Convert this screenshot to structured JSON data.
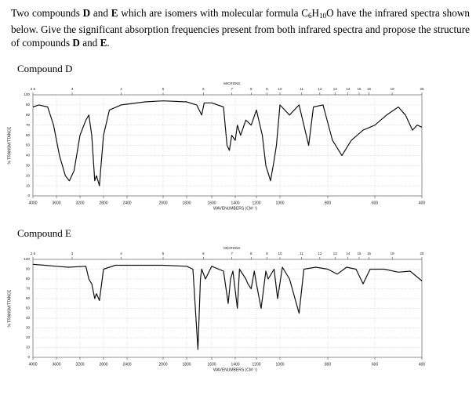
{
  "question": [
    "Two compounds ",
    "D",
    " and ",
    "E",
    " which are isomers with molecular formula C",
    "6",
    "H",
    "10",
    "O have the infrared spectra shown below. Give the significant absorption frequencies present from both infrared spectra and propose the structure of compounds ",
    "D",
    " and ",
    "E",
    "."
  ],
  "chart_data": [
    {
      "type": "line",
      "title": "Compound D",
      "xlabel": "WAVENUMBERS (CM⁻¹)",
      "ylabel": "% TRANSMITTANCE",
      "x2label": "MICRONS",
      "x": [
        4000,
        3900,
        3750,
        3650,
        3550,
        3450,
        3380,
        3300,
        3200,
        3100,
        3050,
        3000,
        2950,
        2920,
        2870,
        2850,
        2800,
        2700,
        2500,
        2200,
        2000,
        1800,
        1720,
        1680,
        1660,
        1600,
        1500,
        1470,
        1450,
        1430,
        1400,
        1380,
        1350,
        1300,
        1250,
        1200,
        1150,
        1120,
        1080,
        1050,
        1030,
        1000,
        960,
        920,
        880,
        860,
        820,
        780,
        740,
        700,
        650,
        600,
        550,
        500,
        470,
        440,
        420,
        400
      ],
      "series": [
        {
          "color": "#111111",
          "values": [
            88,
            90,
            88,
            70,
            40,
            20,
            15,
            25,
            60,
            75,
            80,
            60,
            15,
            20,
            10,
            25,
            60,
            85,
            90,
            93,
            94,
            93,
            90,
            80,
            92,
            92,
            88,
            50,
            45,
            60,
            55,
            70,
            60,
            75,
            70,
            85,
            60,
            30,
            15,
            35,
            50,
            90,
            80,
            90,
            50,
            88,
            90,
            55,
            40,
            55,
            65,
            70,
            80,
            88,
            80,
            65,
            70,
            68
          ]
        }
      ],
      "xlim": [
        4000,
        400
      ],
      "xticks": [
        4000,
        3600,
        3200,
        2800,
        2400,
        2000,
        1800,
        1600,
        1400,
        1200,
        1000,
        800,
        600,
        400
      ],
      "x2ticks": [
        2.5,
        3,
        4,
        5,
        6,
        7,
        8,
        9,
        10,
        11,
        12,
        13,
        14,
        15,
        16,
        19,
        25
      ],
      "ylim": [
        0,
        100
      ],
      "yticks": [
        0,
        10,
        20,
        30,
        40,
        50,
        60,
        70,
        80,
        90,
        100
      ],
      "grid": true
    },
    {
      "type": "line",
      "title": "Compound E",
      "xlabel": "WAVENUMBERS (CM⁻¹)",
      "ylabel": "% TRANSMITTANCE",
      "x2label": "MICRONS",
      "x": [
        4000,
        3800,
        3600,
        3400,
        3100,
        3050,
        3000,
        2950,
        2920,
        2870,
        2800,
        2600,
        2000,
        1800,
        1750,
        1710,
        1690,
        1680,
        1650,
        1600,
        1500,
        1460,
        1440,
        1420,
        1380,
        1360,
        1300,
        1280,
        1250,
        1220,
        1200,
        1160,
        1120,
        1100,
        1050,
        1020,
        990,
        960,
        920,
        900,
        850,
        800,
        760,
        720,
        680,
        650,
        620,
        560,
        500,
        450,
        400
      ],
      "series": [
        {
          "color": "#111111",
          "values": [
            95,
            94,
            93,
            92,
            93,
            80,
            75,
            60,
            65,
            58,
            90,
            94,
            94,
            93,
            90,
            8,
            80,
            90,
            80,
            93,
            88,
            55,
            80,
            88,
            50,
            90,
            80,
            75,
            70,
            88,
            75,
            50,
            88,
            80,
            90,
            60,
            92,
            80,
            45,
            90,
            92,
            90,
            85,
            92,
            90,
            75,
            90,
            90,
            87,
            88,
            78
          ]
        }
      ],
      "xlim": [
        4000,
        400
      ],
      "xticks": [
        4000,
        3600,
        3200,
        2800,
        2400,
        2000,
        1800,
        1600,
        1400,
        1200,
        1000,
        800,
        600,
        400
      ],
      "x2ticks": [
        2.5,
        3,
        4,
        5,
        6,
        7,
        8,
        9,
        10,
        11,
        12,
        13,
        14,
        15,
        16,
        19,
        25
      ],
      "ylim": [
        0,
        100
      ],
      "yticks": [
        0,
        10,
        20,
        30,
        40,
        50,
        60,
        70,
        80,
        90,
        100
      ],
      "grid": true
    }
  ]
}
